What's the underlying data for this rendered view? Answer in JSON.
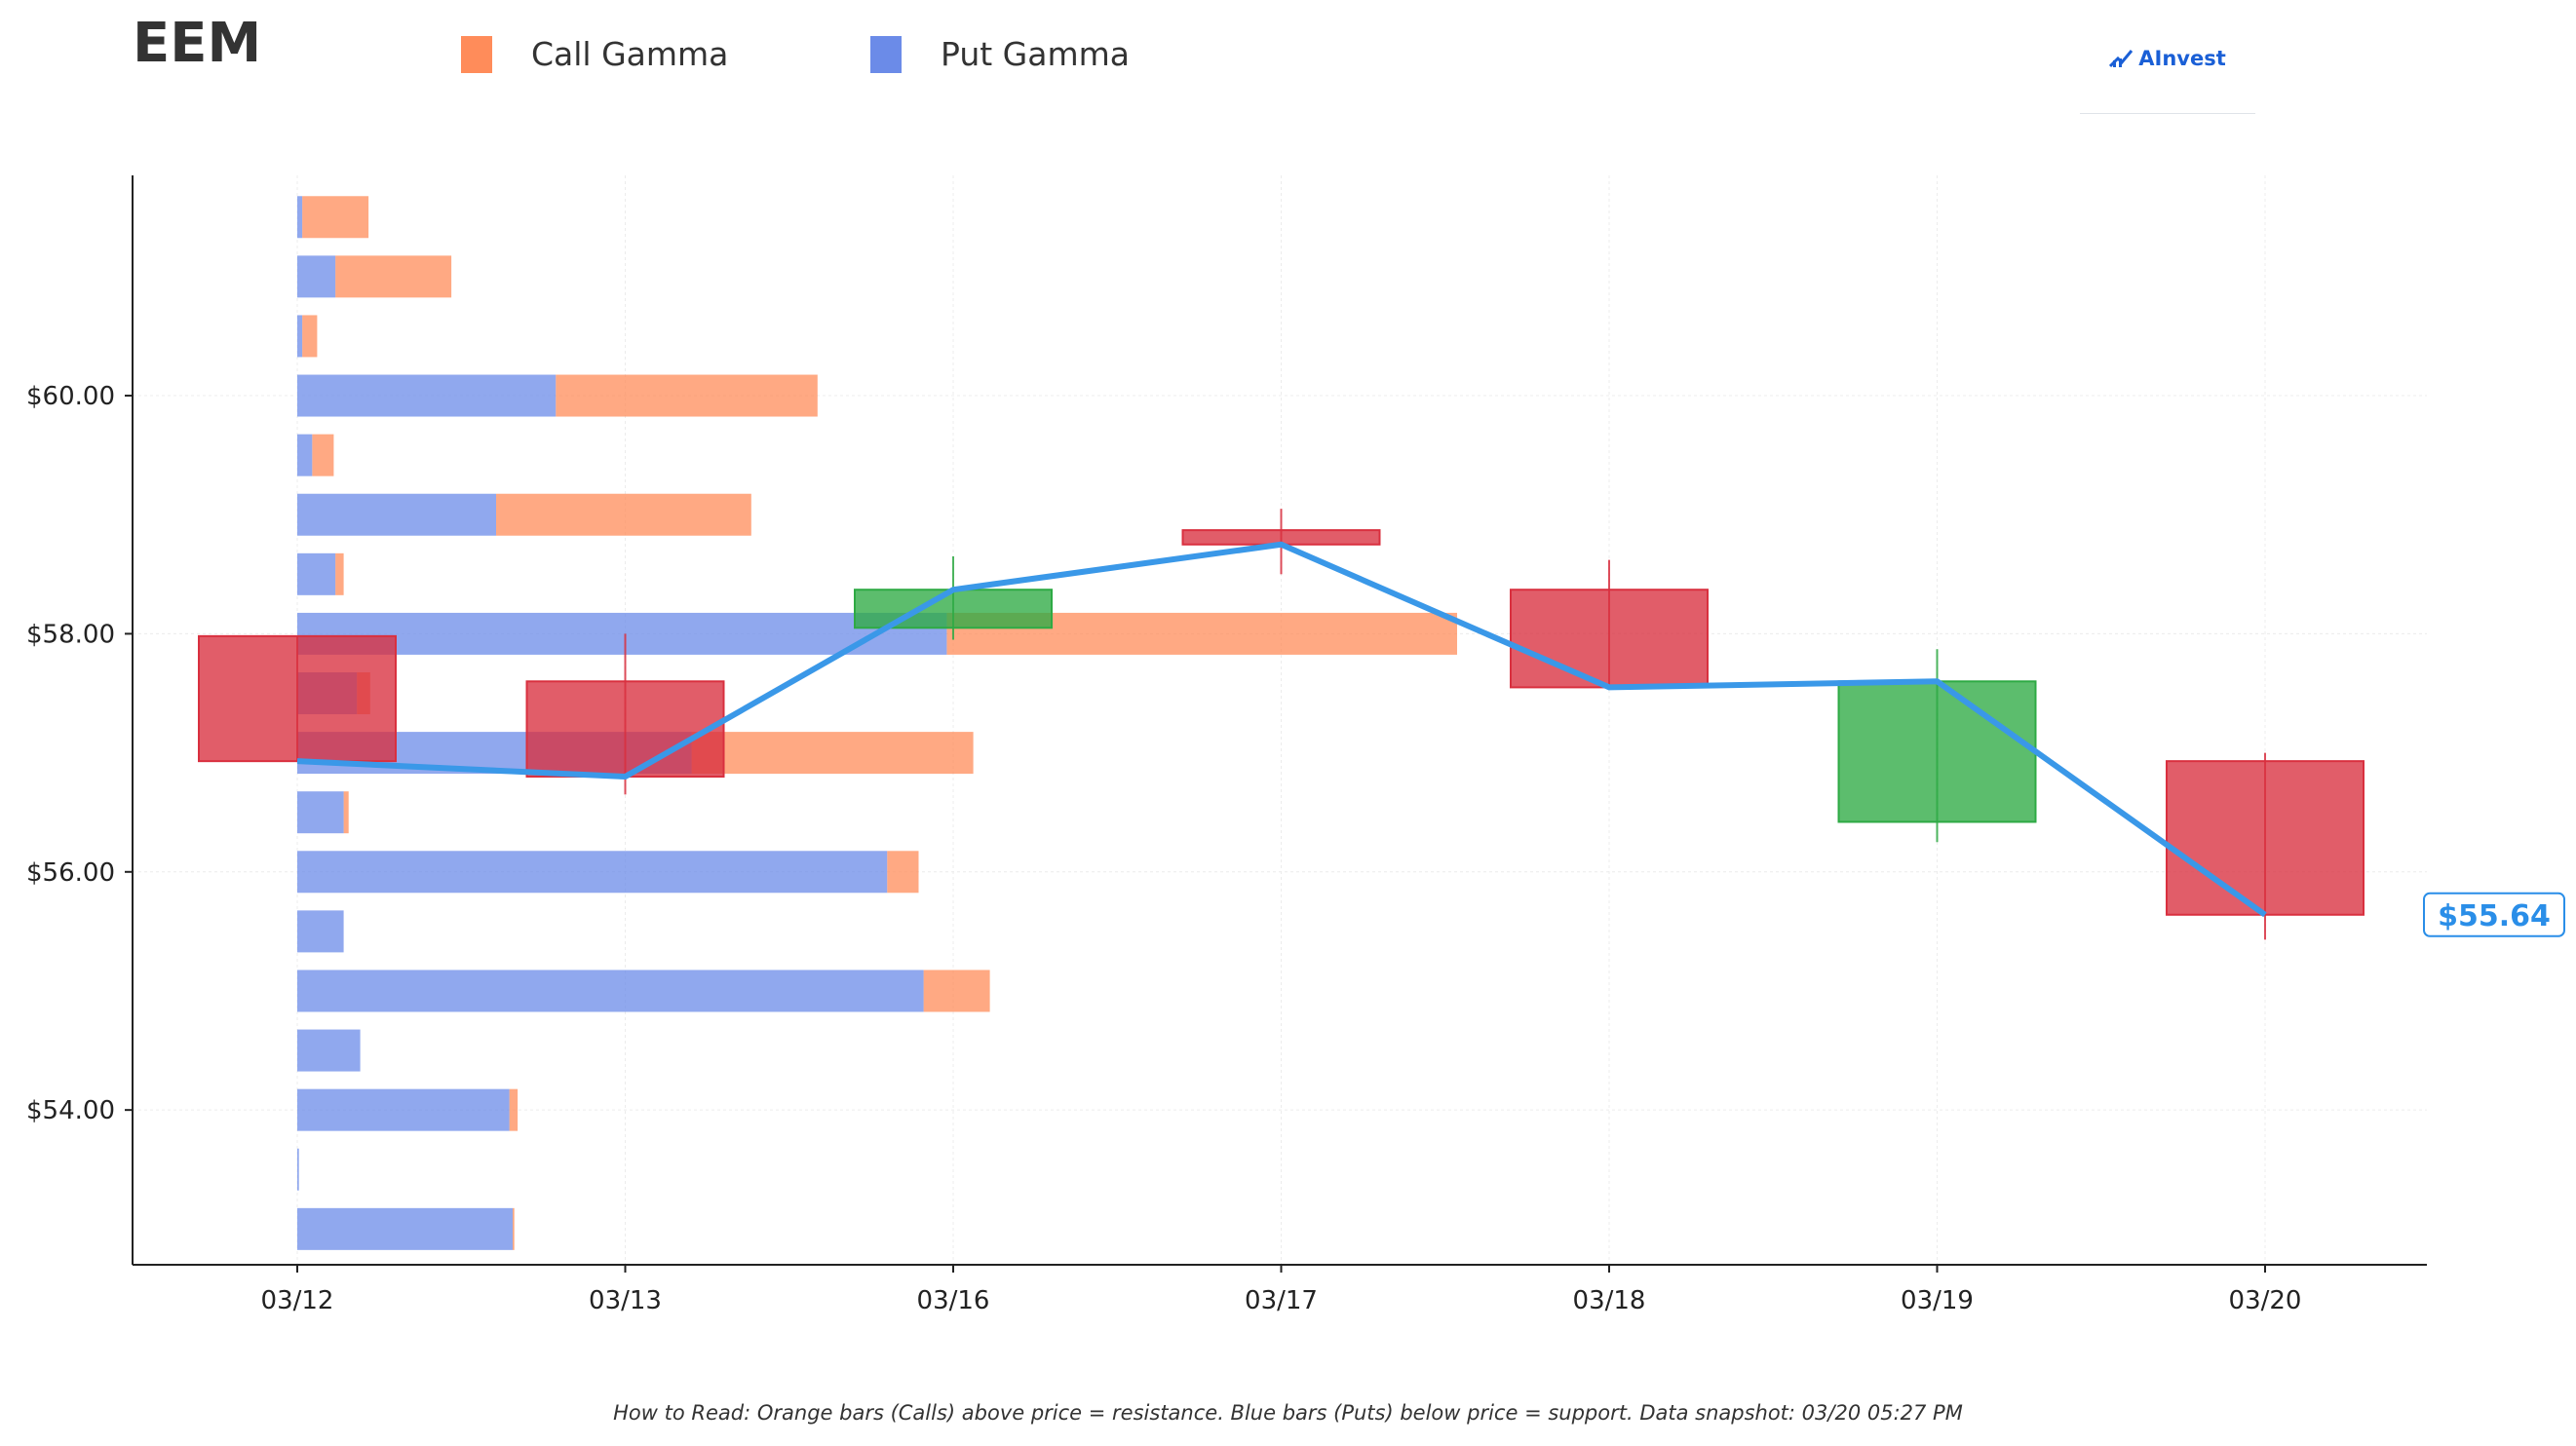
{
  "header": {
    "ticker": "EEM",
    "legend": [
      {
        "label": "Call Gamma",
        "color": "#ff8c5a"
      },
      {
        "label": "Put Gamma",
        "color": "#6b8be8"
      }
    ],
    "logo_text": "AInvest"
  },
  "footnote": "How to Read: Orange bars (Calls) above price = resistance. Blue bars (Puts) below price = support. Data snapshot: 03/20 05:27 PM",
  "colors": {
    "call": "#ff8c5a",
    "put": "#6b8be8",
    "up_candle": "#2eaa44",
    "down_candle": "#d9303f",
    "close_line": "#3a98e8",
    "price_tag": "#2a8ee8"
  },
  "chart_data": {
    "type": "candlestick_with_gamma_bars",
    "categories": [
      "03/12",
      "03/13",
      "03/16",
      "03/17",
      "03/18",
      "03/19",
      "03/20"
    ],
    "y_ticks": [
      {
        "value": 54,
        "label": "$54.00"
      },
      {
        "value": 56,
        "label": "$56.00"
      },
      {
        "value": 58,
        "label": "$58.00"
      },
      {
        "value": 60,
        "label": "$60.00"
      }
    ],
    "ylim": [
      52.7,
      61.85
    ],
    "grid": true,
    "candles": [
      {
        "date": "03/12",
        "open": 57.98,
        "high": 57.98,
        "low": 56.93,
        "close": 56.93
      },
      {
        "date": "03/13",
        "open": 57.6,
        "high": 58.0,
        "low": 56.65,
        "close": 56.8
      },
      {
        "date": "03/16",
        "open": 58.05,
        "high": 58.65,
        "low": 57.95,
        "close": 58.37
      },
      {
        "date": "03/17",
        "open": 58.87,
        "high": 59.05,
        "low": 58.5,
        "close": 58.75
      },
      {
        "date": "03/18",
        "open": 58.37,
        "high": 58.62,
        "low": 57.55,
        "close": 57.55
      },
      {
        "date": "03/19",
        "open": 56.42,
        "high": 57.87,
        "low": 56.25,
        "close": 57.6
      },
      {
        "date": "03/20",
        "open": 56.93,
        "high": 57.0,
        "low": 55.43,
        "close": 55.64
      }
    ],
    "gamma_bars": {
      "strikes": [
        61.5,
        61.0,
        60.5,
        60.0,
        59.5,
        59.0,
        58.5,
        58.0,
        57.5,
        57.0,
        56.5,
        56.0,
        55.5,
        55.0,
        54.5,
        54.0,
        53.5,
        53.0
      ],
      "put_gamma": [
        0.015,
        0.115,
        0.015,
        0.78,
        0.045,
        0.6,
        0.115,
        1.96,
        0.18,
        1.19,
        0.14,
        1.78,
        0.14,
        1.89,
        0.19,
        0.64,
        0.005,
        0.65
      ],
      "call_gamma": [
        0.2,
        0.35,
        0.045,
        0.79,
        0.065,
        0.77,
        0.025,
        1.54,
        0.04,
        0.85,
        0.015,
        0.095,
        0.0,
        0.2,
        0.0,
        0.025,
        0.0,
        0.005
      ]
    },
    "last_price": {
      "value": 55.64,
      "label": "$55.64"
    }
  }
}
